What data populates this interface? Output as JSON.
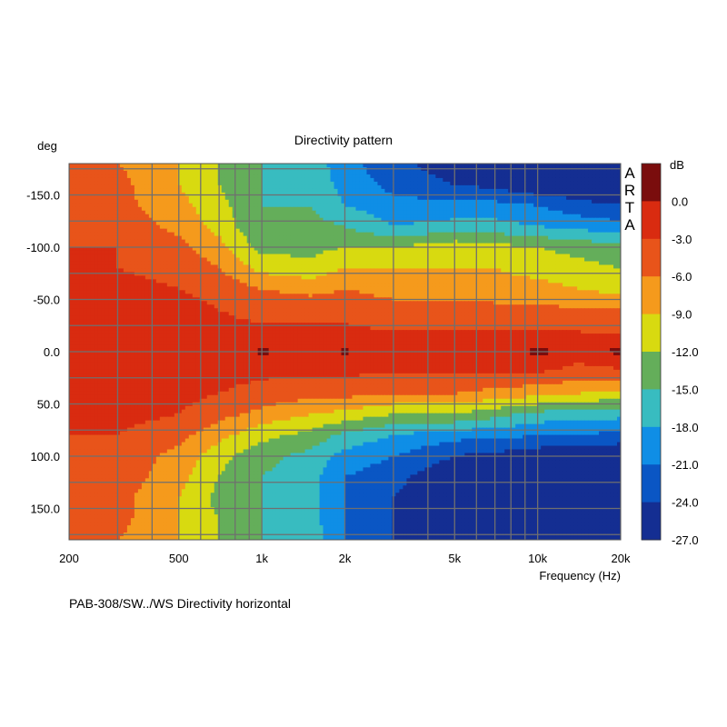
{
  "chart_data": {
    "type": "heatmap",
    "title": "Directivity pattern",
    "xlabel": "Frequency (Hz)",
    "ylabel": "deg",
    "x_scale": "log",
    "xlim": [
      200,
      20000
    ],
    "ylim": [
      -180,
      180
    ],
    "x_ticks": [
      {
        "value": 200,
        "label": "200"
      },
      {
        "value": 500,
        "label": "500"
      },
      {
        "value": 1000,
        "label": "1k"
      },
      {
        "value": 2000,
        "label": "2k"
      },
      {
        "value": 5000,
        "label": "5k"
      },
      {
        "value": 10000,
        "label": "10k"
      },
      {
        "value": 20000,
        "label": "20k"
      }
    ],
    "x_gridlines": [
      200,
      300,
      400,
      500,
      600,
      700,
      800,
      900,
      1000,
      2000,
      3000,
      4000,
      5000,
      6000,
      7000,
      8000,
      9000,
      10000,
      20000
    ],
    "y_ticks": [
      {
        "value": -150,
        "label": "-150.0"
      },
      {
        "value": -100,
        "label": "-100.0"
      },
      {
        "value": -50,
        "label": "-50.0"
      },
      {
        "value": 0,
        "label": "0.0"
      },
      {
        "value": 50,
        "label": "50.0"
      },
      {
        "value": 100,
        "label": "100.0"
      },
      {
        "value": 150,
        "label": "150.0"
      }
    ],
    "y_gridlines": [
      -175,
      -150,
      -125,
      -100,
      -75,
      -50,
      -25,
      0,
      25,
      50,
      75,
      100,
      125,
      150,
      175
    ],
    "grid": true,
    "watermark": "ARTA",
    "colorbar": {
      "unit": "dB",
      "levels": [
        {
          "label": "0.0",
          "value": 0.0
        },
        {
          "label": "-3.0",
          "value": -3.0
        },
        {
          "label": "-6.0",
          "value": -6.0
        },
        {
          "label": "-9.0",
          "value": -9.0
        },
        {
          "label": "-12.0",
          "value": -12.0
        },
        {
          "label": "-15.0",
          "value": -15.0
        },
        {
          "label": "-18.0",
          "value": -18.0
        },
        {
          "label": "-21.0",
          "value": -21.0
        },
        {
          "label": "-24.0",
          "value": -24.0
        },
        {
          "label": "-27.0",
          "value": -27.0
        }
      ],
      "colors": [
        "#7a0d0d",
        "#d92b10",
        "#e8541a",
        "#f59a1c",
        "#d8da10",
        "#64ae5a",
        "#38bcc0",
        "#0f8ee6",
        "#0a56c4",
        "#142e92"
      ]
    },
    "frequencies": [
      200,
      300,
      500,
      700,
      1000,
      1500,
      2000,
      3000,
      5000,
      7000,
      10000,
      14000,
      20000
    ],
    "angles": [
      -180,
      -160,
      -140,
      -120,
      -100,
      -80,
      -60,
      -40,
      -20,
      0,
      20,
      40,
      60,
      80,
      100,
      120,
      140,
      160,
      180
    ],
    "values": [
      [
        -5,
        -6,
        -9,
        -12,
        -15,
        -16,
        -20,
        -23,
        -26,
        -27,
        -27,
        -27,
        -27
      ],
      [
        -5,
        -5,
        -9,
        -12,
        -15,
        -16,
        -19,
        -22,
        -24,
        -25,
        -27,
        -27,
        -27
      ],
      [
        -4,
        -5,
        -8,
        -11,
        -15,
        -15,
        -18,
        -20,
        -20,
        -20,
        -21,
        -23,
        -24
      ],
      [
        -4,
        -4,
        -7,
        -10,
        -15,
        -14,
        -15,
        -18,
        -17,
        -17,
        -18,
        -19,
        -20
      ],
      [
        -3,
        -3,
        -5,
        -8,
        -13,
        -13,
        -12,
        -12,
        -10,
        -11,
        -12,
        -13,
        -14
      ],
      [
        -2,
        -3,
        -4,
        -6,
        -10,
        -11,
        -9,
        -9,
        -9,
        -9,
        -10,
        -11,
        -12
      ],
      [
        -2,
        -2,
        -3,
        -4,
        -6,
        -7,
        -6,
        -7,
        -7,
        -8,
        -8,
        -9,
        -10
      ],
      [
        -2,
        -2,
        -2,
        -3,
        -4,
        -4,
        -4,
        -5,
        -5,
        -5,
        -5,
        -6,
        -6
      ],
      [
        -2,
        -2,
        -2,
        -2,
        -2.5,
        -2.5,
        -2.5,
        -3,
        -3,
        -3,
        -3,
        -3,
        -4
      ],
      [
        -2,
        -2,
        -2,
        -1.5,
        0.5,
        -1.5,
        0.5,
        -2,
        -2,
        -2.5,
        1,
        -2,
        1
      ],
      [
        -2,
        -2,
        -2,
        -2,
        -2.5,
        -2.5,
        -2.5,
        -3,
        -3,
        -3,
        -3,
        -4,
        -4
      ],
      [
        -2,
        -2,
        -2,
        -3,
        -4,
        -5,
        -5,
        -6,
        -6,
        -7,
        -8,
        -9,
        -10
      ],
      [
        -2,
        -2,
        -3,
        -5,
        -7,
        -9,
        -10,
        -12,
        -12,
        -14,
        -16,
        -17,
        -17
      ],
      [
        -3,
        -3,
        -5,
        -8,
        -11,
        -13,
        -16,
        -18,
        -20,
        -20,
        -21,
        -21,
        -22
      ],
      [
        -6,
        -4,
        -7,
        -11,
        -14,
        -16,
        -19,
        -21,
        -24,
        -25,
        -26,
        -27,
        -27
      ],
      [
        -6,
        -4,
        -8,
        -12,
        -15,
        -17,
        -21,
        -23,
        -27,
        -27,
        -27,
        -27,
        -27
      ],
      [
        -6,
        -5,
        -9,
        -13,
        -15,
        -17,
        -21,
        -24,
        -27,
        -27,
        -27,
        -27,
        -27
      ],
      [
        -5,
        -5,
        -9,
        -12,
        -15,
        -17,
        -21,
        -24,
        -27,
        -27,
        -27,
        -27,
        -27
      ],
      [
        -5,
        -6,
        -9,
        -12,
        -15,
        -16,
        -21,
        -24,
        -27,
        -27,
        -27,
        -27,
        -27
      ]
    ]
  },
  "footer": {
    "caption": "PAB-308/SW../WS  Directivity horizontal"
  }
}
